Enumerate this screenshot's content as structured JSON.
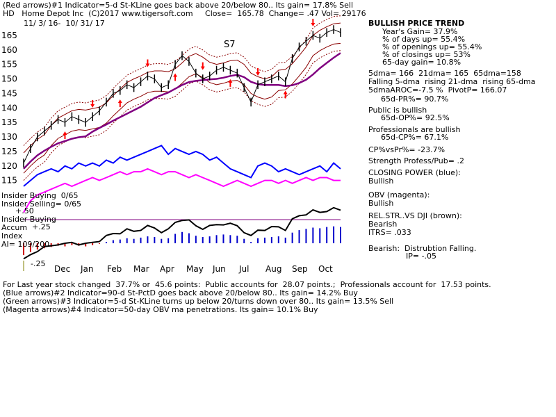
{
  "header": {
    "line1": "(Red arrows)#1 Indicator=5-d St-KLine goes back above 20/below 80.. Its gain= 17.8% Sell",
    "line2": "HD   Home Depot Inc  (C)2017 www.tigersoft.com     Close=  165.78  Change= .47 Vol= 29176",
    "dates": "11/ 3/ 16-  10/ 31/ 17"
  },
  "chart_data": {
    "type": "line",
    "price_axis": {
      "ticks": [
        115,
        120,
        125,
        130,
        135,
        140,
        145,
        150,
        155,
        160,
        165
      ],
      "ylim": [
        113,
        170
      ]
    },
    "x_ticks": [
      "Dec",
      "Jan",
      "Feb",
      "Mar",
      "Apr",
      "May",
      "Jun",
      "Jul",
      "Aug",
      "Sep",
      "Oct"
    ],
    "annotation": "S7",
    "left_labels": {
      "insider_buying": "Insider Buying  0/65",
      "insider_selling": "Insider Selling= 0/65",
      "plus50": "+.50",
      "insider_buying2": "Insider Buying",
      "accum": "Accum",
      "plus25": "+.25",
      "index": "Index",
      "ai": "AI= 109/200",
      "minus25": "-.25"
    },
    "series": [
      {
        "name": "price",
        "color": "#000000",
        "values": [
          121,
          126,
          130,
          132,
          134,
          136,
          135,
          137,
          136,
          135,
          137,
          139,
          142,
          145,
          146,
          148,
          147,
          149,
          151,
          150,
          147,
          148,
          155,
          158,
          156,
          152,
          150,
          151,
          153,
          154,
          153,
          152,
          147,
          142,
          148,
          149,
          150,
          151,
          149,
          157,
          161,
          163,
          165,
          164,
          166,
          167,
          166
        ]
      },
      {
        "name": "Closing Power",
        "color": "#0000ff",
        "values": [
          113,
          115,
          117,
          118,
          119,
          118,
          120,
          119,
          121,
          120,
          121,
          120,
          122,
          121,
          123,
          122,
          123,
          124,
          125,
          126,
          127,
          124,
          126,
          125,
          124,
          125,
          124,
          122,
          123,
          121,
          119,
          118,
          117,
          116,
          120,
          121,
          120,
          118,
          119,
          118,
          117,
          118,
          119,
          120,
          118,
          121,
          119
        ]
      },
      {
        "name": "OBV",
        "color": "#ff00ff",
        "values": [
          104,
          108,
          110,
          111,
          112,
          113,
          114,
          113,
          114,
          115,
          116,
          115,
          116,
          117,
          118,
          117,
          118,
          118,
          119,
          118,
          117,
          118,
          118,
          117,
          116,
          117,
          116,
          115,
          114,
          113,
          114,
          115,
          114,
          113,
          114,
          115,
          115,
          114,
          115,
          114,
          115,
          116,
          115,
          116,
          116,
          115,
          115
        ]
      }
    ]
  },
  "panel": {
    "title": "BULLISH PRICE TREND",
    "year_gain": "Year's Gain= 37.9%",
    "days_up": "% of days up= 55.4%",
    "openings_up": "% of openings up= 55.4%",
    "closings_up": "% of closings up= 53%",
    "day65_gain": "65-day gain= 10.8%",
    "dma": "5dma= 166  21dma= 165  65dma=158",
    "falling": "Falling 5-dma  rising 21-dma  rising 65-dma",
    "aroc": "5dmaAROC=-7.5 %  PivotP= 166.07",
    "pr": "65d-PR%= 90.7%",
    "public_bullish": "Public is bullish",
    "op": "65d-OP%= 92.5%",
    "pros_bullish": "Professionals are bullish",
    "cp": "65d-CP%= 67.1%",
    "cpvspr": "CP%vsPr%= -23.7%",
    "strength": "Strength Profess/Pub= .2",
    "closing_power": "CLOSING POWER (blue):",
    "cp_bullish": "Bullish",
    "obv": "OBV (magenta):",
    "obv_bullish": "Bullish",
    "relstr": "REL.STR..VS DJI (brown):",
    "relstr_bearish": "Bearish",
    "itrs": "ITRS= .033",
    "bearish": "Bearish:  Distrubtion Falling.",
    "ip": "IP= -.05"
  },
  "footer": {
    "line1": "For Last year stock changed  37.7% or  45.6 points:  Public accounts for  28.07 points.;  Professionals account for  17.53 points.",
    "line2": "(Blue arrows)#2 Indicator=90-d St-PctD goes back above 20/below 80.. Its gain= 14.2% Buy",
    "line3": "(Green arrows)#3 Indicator=5-d St-KLine turns up below 20/turns down over 80.. Its gain= 13.5% Sell",
    "line4": "(Magenta arrows)#4 Indicator=50-day OBV ma penetrations. Its gain= 10.1% Buy"
  },
  "colors": {
    "price": "#000000",
    "closing_power": "#0000ff",
    "obv": "#ff00ff",
    "ma65": "#800080",
    "band": "#8b0000",
    "arrow": "#ff0000"
  }
}
